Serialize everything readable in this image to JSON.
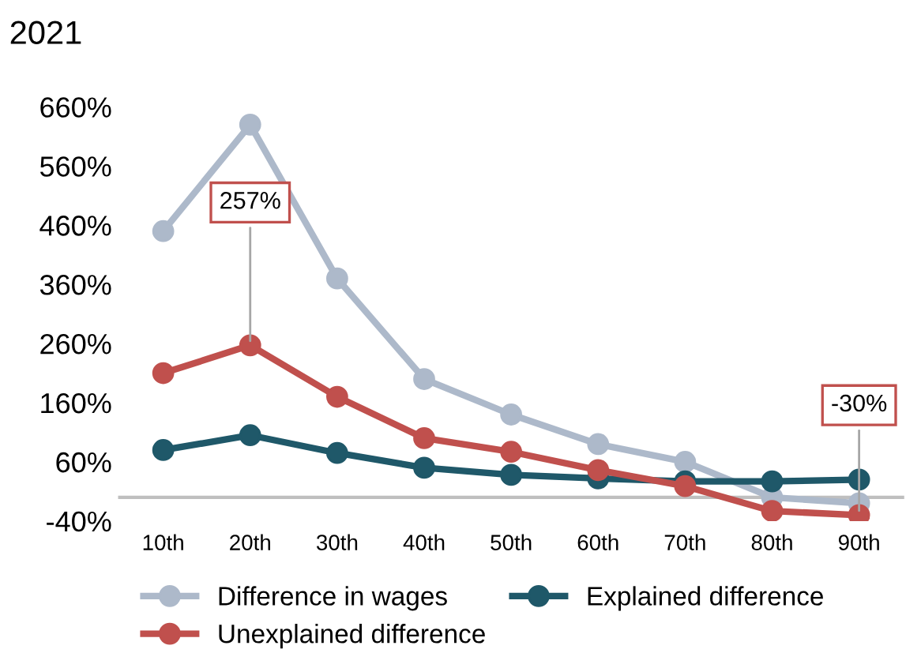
{
  "chart_data": {
    "type": "line",
    "title": "2021",
    "categories": [
      "10th",
      "20th",
      "30th",
      "40th",
      "50th",
      "60th",
      "70th",
      "80th",
      "90th"
    ],
    "series": [
      {
        "name": "Difference in wages",
        "color": "#adb9ca",
        "values": [
          450,
          630,
          370,
          200,
          140,
          90,
          60,
          0,
          -10
        ]
      },
      {
        "name": "Explained difference",
        "color": "#1f5869",
        "values": [
          80,
          105,
          75,
          50,
          38,
          32,
          27,
          27,
          30
        ]
      },
      {
        "name": "Unexplained difference",
        "color": "#c0504d",
        "values": [
          210,
          257,
          170,
          100,
          77,
          46,
          19,
          -23,
          -30
        ]
      }
    ],
    "ylim": [
      -40,
      660
    ],
    "yticks": [
      {
        "value": -40,
        "label": "-40%"
      },
      {
        "value": 60,
        "label": "60%"
      },
      {
        "value": 160,
        "label": "160%"
      },
      {
        "value": 260,
        "label": "260%"
      },
      {
        "value": 360,
        "label": "360%"
      },
      {
        "value": 460,
        "label": "460%"
      },
      {
        "value": 560,
        "label": "560%"
      },
      {
        "value": 660,
        "label": "660%"
      }
    ],
    "annotations": [
      {
        "text": "257%",
        "x": "20th",
        "y": 257
      },
      {
        "text": "-30%",
        "x": "90th",
        "y": -30
      }
    ],
    "marker": "circle",
    "line_style": "solid",
    "grid": false,
    "legend": "bottom"
  }
}
